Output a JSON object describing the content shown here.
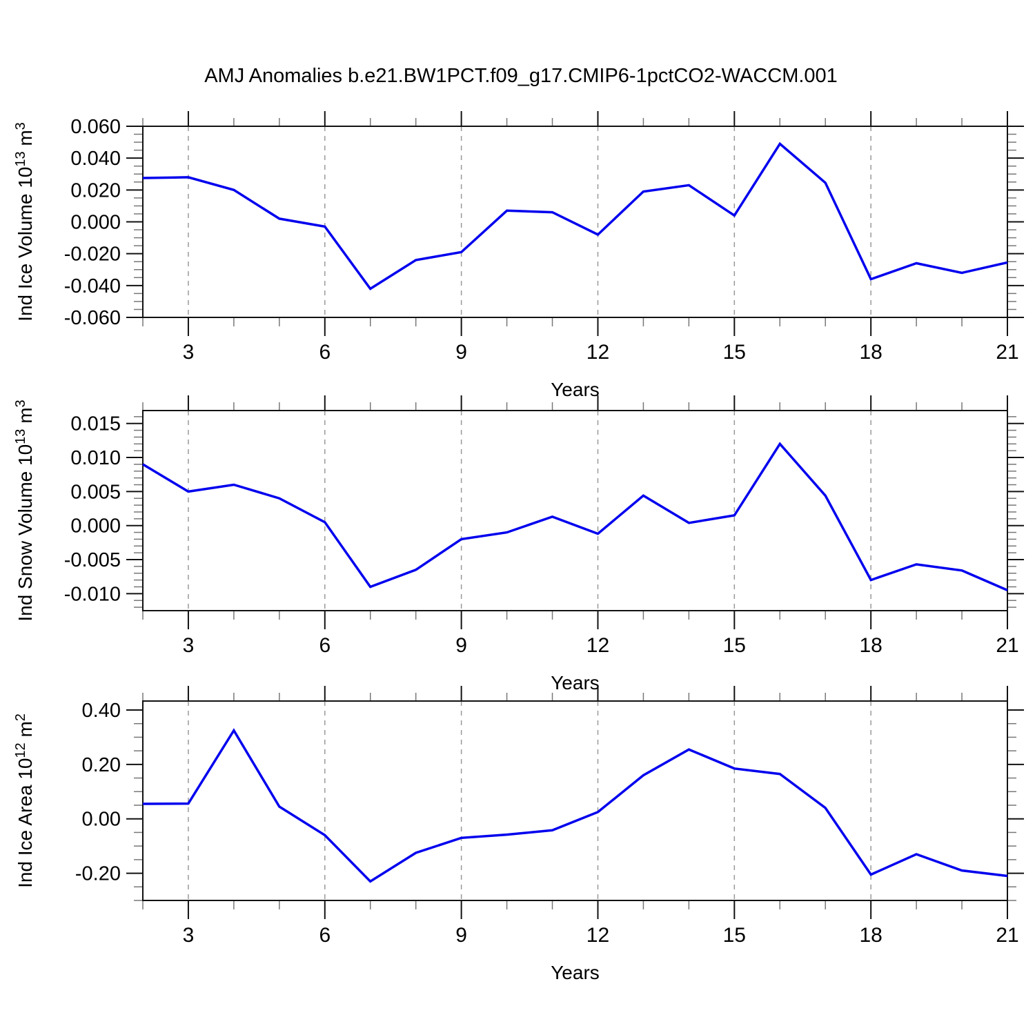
{
  "page": {
    "background": "#ffffff"
  },
  "title": "AMJ Anomalies b.e21.BW1PCT.f09_g17.CMIP6-1pctCO2-WACCM.001",
  "styles": {
    "line_color": "#0000ee",
    "frame_color": "#111111",
    "major_tick_color": "#111111",
    "minor_tick_color": "#777777",
    "grid_color": "#999999",
    "text_color": "#000000"
  },
  "chart_data": [
    {
      "type": "line",
      "name": "ind-ice-volume",
      "ylabel": "Ind Ice Volume 10^13 m^3",
      "ylabel_parts": [
        [
          "Ind Ice Volume 10",
          false
        ],
        [
          "13",
          true
        ],
        [
          " m",
          false
        ],
        [
          "3",
          true
        ]
      ],
      "xlabel": "Years",
      "x": [
        2,
        3,
        4,
        5,
        6,
        7,
        8,
        9,
        10,
        11,
        12,
        13,
        14,
        15,
        16,
        17,
        18,
        19,
        20,
        21
      ],
      "values": [
        0.0275,
        0.028,
        0.02,
        0.002,
        -0.003,
        -0.042,
        -0.024,
        -0.019,
        0.007,
        0.006,
        -0.008,
        0.019,
        0.023,
        0.004,
        0.049,
        0.0245,
        -0.036,
        -0.026,
        -0.032,
        -0.0255
      ],
      "xlim": [
        2,
        21
      ],
      "ylim": [
        -0.06,
        0.06
      ],
      "yticks": [
        0.06,
        0.04,
        0.02,
        0.0,
        -0.02,
        -0.04,
        -0.06
      ],
      "ytick_labels": [
        "0.060",
        "0.040",
        "0.020",
        "0.000",
        "-0.020",
        "-0.040",
        "-0.060"
      ],
      "ytick_minor_step": 0.005,
      "xticks_major": [
        3,
        6,
        9,
        12,
        15,
        18,
        21
      ],
      "xtick_labels": [
        "3",
        "6",
        "9",
        "12",
        "15",
        "18",
        "21"
      ],
      "xtick_minor_step": 1,
      "grid": "x-major-dashed",
      "legend": "none"
    },
    {
      "type": "line",
      "name": "ind-snow-volume",
      "ylabel": "Ind Snow Volume 10^13 m^3",
      "ylabel_parts": [
        [
          "Ind Snow Volume 10",
          false
        ],
        [
          "13",
          true
        ],
        [
          " m",
          false
        ],
        [
          "3",
          true
        ]
      ],
      "xlabel": "Years",
      "x": [
        2,
        3,
        4,
        5,
        6,
        7,
        8,
        9,
        10,
        11,
        12,
        13,
        14,
        15,
        16,
        17,
        18,
        19,
        20,
        21
      ],
      "values": [
        0.009,
        0.005,
        0.006,
        0.004,
        0.0005,
        -0.009,
        -0.0065,
        -0.002,
        -0.001,
        0.0013,
        -0.0012,
        0.0044,
        0.0004,
        0.0015,
        0.012,
        0.0044,
        -0.008,
        -0.0057,
        -0.0066,
        -0.0095
      ],
      "xlim": [
        2,
        21
      ],
      "ylim": [
        -0.0125,
        0.0169
      ],
      "yticks": [
        0.015,
        0.01,
        0.005,
        0.0,
        -0.005,
        -0.01
      ],
      "ytick_labels": [
        "0.015",
        "0.010",
        "0.005",
        "0.000",
        "-0.005",
        "-0.010"
      ],
      "ytick_minor_step": 0.001,
      "xticks_major": [
        3,
        6,
        9,
        12,
        15,
        18,
        21
      ],
      "xtick_labels": [
        "3",
        "6",
        "9",
        "12",
        "15",
        "18",
        "21"
      ],
      "xtick_minor_step": 1,
      "grid": "x-major-dashed",
      "legend": "none"
    },
    {
      "type": "line",
      "name": "ind-ice-area",
      "ylabel": "Ind Ice Area 10^12 m^2",
      "ylabel_parts": [
        [
          "Ind Ice Area 10",
          false
        ],
        [
          "12",
          true
        ],
        [
          " m",
          false
        ],
        [
          "2",
          true
        ]
      ],
      "xlabel": "Years",
      "x": [
        2,
        3,
        4,
        5,
        6,
        7,
        8,
        9,
        10,
        11,
        12,
        13,
        14,
        15,
        16,
        17,
        18,
        19,
        20,
        21
      ],
      "values": [
        0.055,
        0.056,
        0.325,
        0.045,
        -0.06,
        -0.23,
        -0.125,
        -0.07,
        -0.058,
        -0.042,
        0.025,
        0.16,
        0.255,
        0.185,
        0.165,
        0.04,
        -0.205,
        -0.13,
        -0.19,
        -0.21
      ],
      "xlim": [
        2,
        21
      ],
      "ylim": [
        -0.3,
        0.433
      ],
      "yticks": [
        0.4,
        0.2,
        0.0,
        -0.2
      ],
      "ytick_labels": [
        "0.40",
        "0.20",
        "0.00",
        "-0.20"
      ],
      "ytick_minor_step": 0.05,
      "xticks_major": [
        3,
        6,
        9,
        12,
        15,
        18,
        21
      ],
      "xtick_labels": [
        "3",
        "6",
        "9",
        "12",
        "15",
        "18",
        "21"
      ],
      "xtick_minor_step": 1,
      "grid": "x-major-dashed",
      "legend": "none"
    }
  ]
}
